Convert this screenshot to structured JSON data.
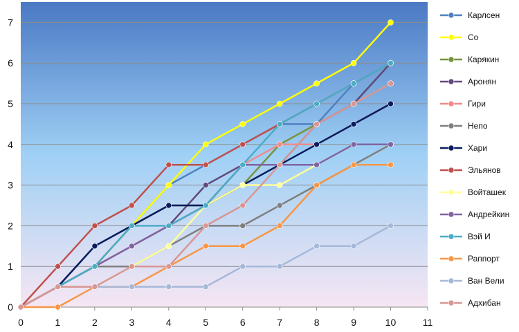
{
  "chart_data": {
    "type": "line",
    "title": "",
    "xlabel": "",
    "ylabel": "",
    "xlim": [
      0,
      11
    ],
    "ylim": [
      0,
      7.5
    ],
    "x_ticks": [
      "0",
      "1",
      "2",
      "3",
      "4",
      "5",
      "6",
      "7",
      "8",
      "9",
      "10",
      "11"
    ],
    "y_ticks": [
      "0",
      "1",
      "2",
      "3",
      "4",
      "5",
      "6",
      "7"
    ],
    "grid": "horizontal",
    "legend_position": "right",
    "background": "vertical gradient blue to pink",
    "x": [
      0,
      1,
      2,
      3,
      4,
      5,
      6,
      7,
      8,
      9,
      10
    ],
    "series": [
      {
        "name": "Карлсен",
        "color": "#4F81BD",
        "values": [
          0,
          0.5,
          1.5,
          2,
          3,
          3.5,
          4,
          4.5,
          4.5,
          5.5,
          6
        ]
      },
      {
        "name": "Со",
        "color": "#FFFF00",
        "values": [
          0,
          0.5,
          1,
          2,
          3,
          4,
          4.5,
          5,
          5.5,
          6,
          7
        ]
      },
      {
        "name": "Карякин",
        "color": "#77933C",
        "values": [
          0,
          0.5,
          1,
          2,
          2.5,
          2.5,
          3,
          4,
          4.5,
          5,
          6
        ]
      },
      {
        "name": "Аронян",
        "color": "#604A7B",
        "values": [
          0,
          0.5,
          1,
          1.5,
          2,
          3,
          3.5,
          3.5,
          4.5,
          5,
          6
        ]
      },
      {
        "name": "Гири",
        "color": "#F28A8A",
        "values": [
          0,
          0.5,
          1,
          1.5,
          2,
          2.5,
          3.5,
          4,
          4,
          4.5,
          5
        ]
      },
      {
        "name": "Непо",
        "color": "#7F7F7F",
        "values": [
          0,
          0.5,
          1,
          1,
          1.5,
          2,
          2,
          2.5,
          3,
          3.5,
          4
        ]
      },
      {
        "name": "Хари",
        "color": "#0A1C5E",
        "values": [
          0,
          0.5,
          1.5,
          2,
          2.5,
          2.5,
          3,
          3.5,
          4,
          4.5,
          5
        ]
      },
      {
        "name": "Эльянов",
        "color": "#C0504D",
        "values": [
          0,
          1,
          2,
          2.5,
          3.5,
          3.5,
          4,
          4.5,
          5,
          5.5,
          6
        ]
      },
      {
        "name": "Войташек",
        "color": "#FFFF99",
        "values": [
          0,
          0.5,
          0.5,
          1,
          1.5,
          2.5,
          3,
          3,
          3.5,
          4,
          4
        ]
      },
      {
        "name": "Андрейкин",
        "color": "#8064A2",
        "values": [
          0,
          0.5,
          1,
          1.5,
          2,
          2.5,
          3.5,
          3.5,
          3.5,
          4,
          4
        ]
      },
      {
        "name": "Вэй И",
        "color": "#4BACC6",
        "values": [
          0,
          0.5,
          1,
          2,
          2,
          2.5,
          3.5,
          4.5,
          5,
          5.5,
          6
        ]
      },
      {
        "name": "Раппорт",
        "color": "#F79646",
        "values": [
          0,
          0,
          0.5,
          0.5,
          1,
          1.5,
          1.5,
          2,
          3,
          3.5,
          3.5
        ]
      },
      {
        "name": "Ван Вели",
        "color": "#A6B8D8",
        "values": [
          0,
          0.5,
          0.5,
          0.5,
          0.5,
          0.5,
          1,
          1,
          1.5,
          1.5,
          2
        ]
      },
      {
        "name": "Адхибан",
        "color": "#D99694",
        "values": [
          0,
          0.5,
          0.5,
          1,
          1,
          2,
          2.5,
          3.5,
          4.5,
          5,
          5.5
        ]
      }
    ]
  }
}
